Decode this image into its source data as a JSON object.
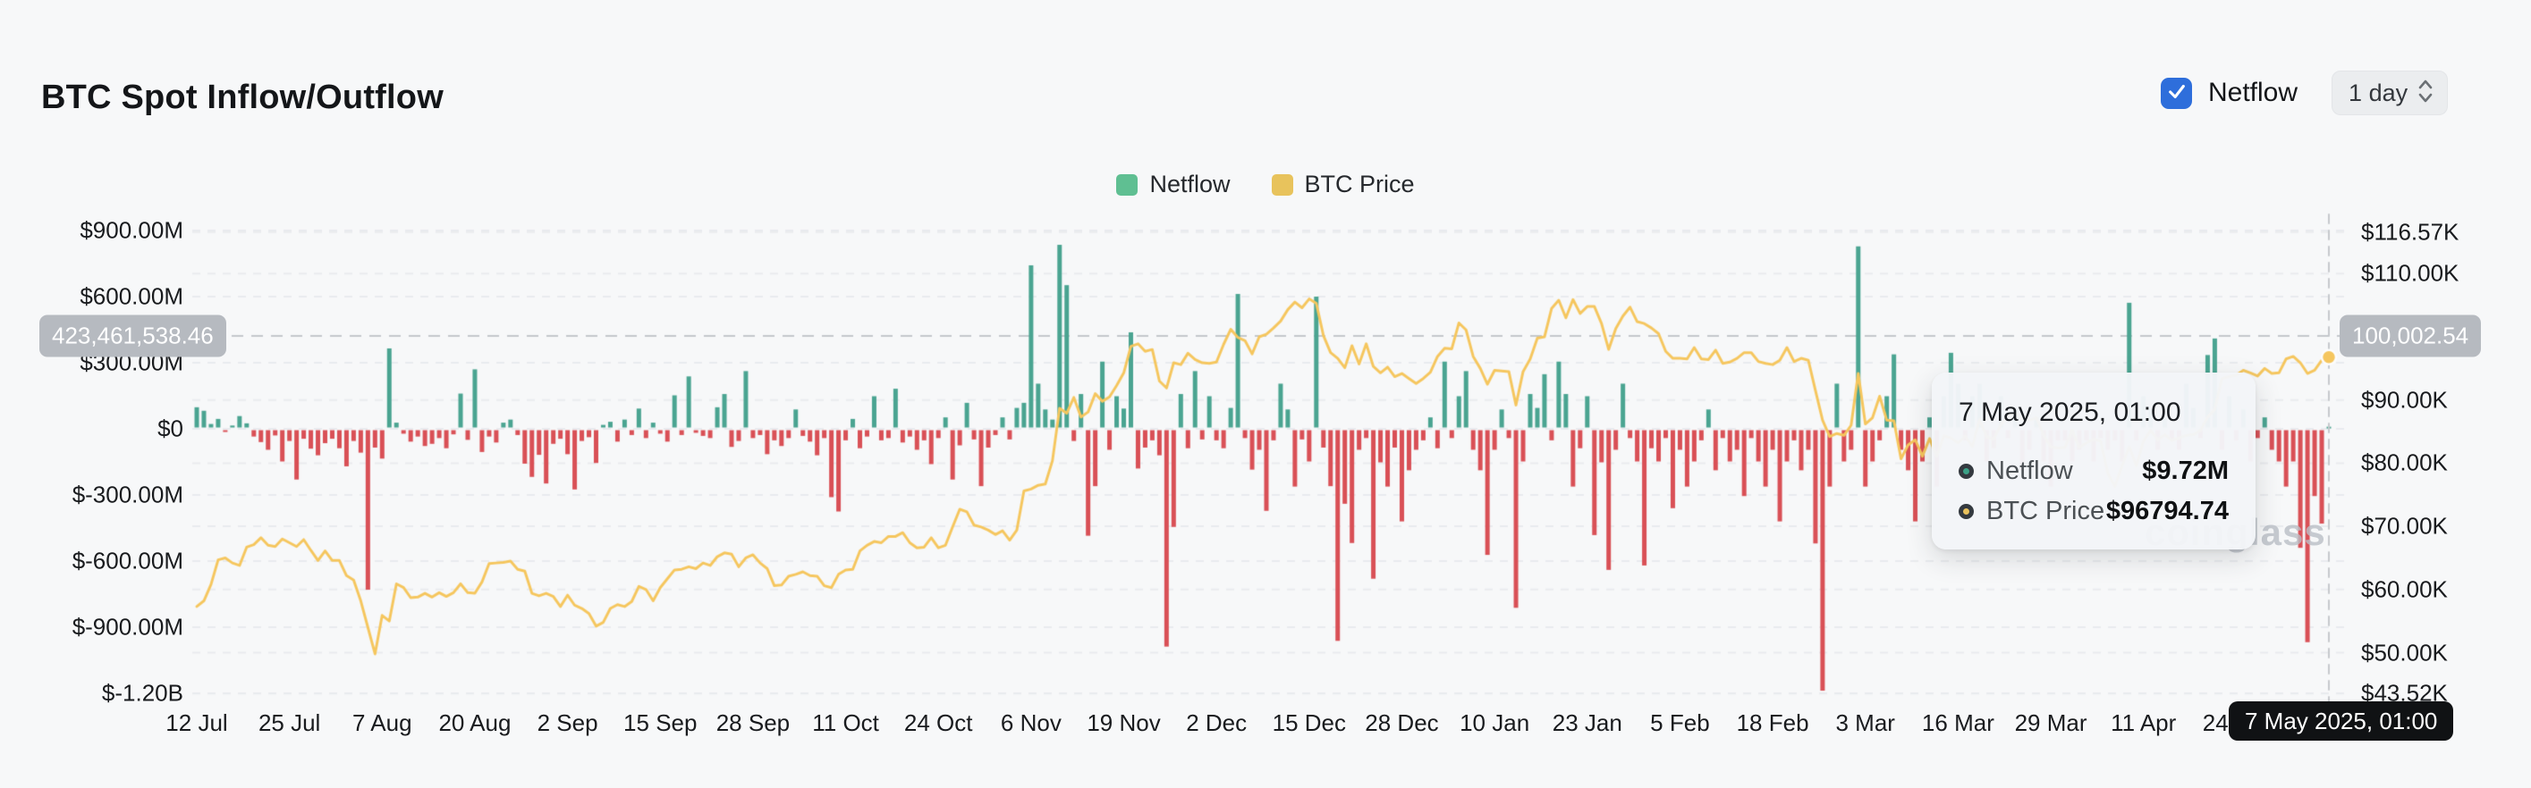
{
  "page": {
    "background": "#f7f8f9"
  },
  "header": {
    "title": "BTC Spot Inflow/Outflow",
    "netflow_checkbox": {
      "label": "Netflow",
      "checked": true,
      "color": "#2e6edb"
    },
    "interval_select": {
      "value": "1 day"
    }
  },
  "legend": {
    "items": [
      {
        "label": "Netflow",
        "color": "#5fbf92"
      },
      {
        "label": "BTC Price",
        "color": "#e8c35c"
      }
    ]
  },
  "crosshair": {
    "left_axis_badge": "423,461,538.46",
    "right_axis_badge": "100,002.54",
    "x_axis_badge": "7 May 2025, 01:00"
  },
  "tooltip": {
    "title": "7 May 2025, 01:00",
    "rows": [
      {
        "label": "Netflow",
        "value": "$9.72M",
        "marker_color": "#3ba186"
      },
      {
        "label": "BTC Price",
        "value": "$96794.74",
        "marker_color": "#e9c25d"
      }
    ]
  },
  "watermark": "coinglass",
  "chart_data": {
    "type": "bar+line",
    "n_points": 300,
    "x_tick_labels": [
      "12 Jul",
      "25 Jul",
      "7 Aug",
      "20 Aug",
      "2 Sep",
      "15 Sep",
      "28 Sep",
      "11 Oct",
      "24 Oct",
      "6 Nov",
      "19 Nov",
      "2 Dec",
      "15 Dec",
      "28 Dec",
      "10 Jan",
      "23 Jan",
      "5 Feb",
      "18 Feb",
      "3 Mar",
      "16 Mar",
      "29 Mar",
      "11 Apr",
      "24 Apr"
    ],
    "x_tick_indices": [
      0,
      13,
      26,
      39,
      52,
      65,
      78,
      91,
      104,
      117,
      130,
      143,
      156,
      169,
      182,
      195,
      208,
      221,
      234,
      247,
      260,
      273,
      286
    ],
    "left_axis": {
      "labels": [
        {
          "text": "$900.00M",
          "value_m": 900
        },
        {
          "text": "$600.00M",
          "value_m": 600
        },
        {
          "text": "$300.00M",
          "value_m": 300
        },
        {
          "text": "$0",
          "value_m": 0
        },
        {
          "text": "$-300.00M",
          "value_m": -300
        },
        {
          "text": "$-600.00M",
          "value_m": -600
        },
        {
          "text": "$-900.00M",
          "value_m": -900
        },
        {
          "text": "$-1.20B",
          "value_m": -1200
        }
      ]
    },
    "right_axis": {
      "labels": [
        {
          "text": "$116.57K",
          "value_k": 116.57
        },
        {
          "text": "$110.00K",
          "value_k": 110
        },
        {
          "text": "$90.00K",
          "value_k": 90
        },
        {
          "text": "$80.00K",
          "value_k": 80
        },
        {
          "text": "$70.00K",
          "value_k": 70
        },
        {
          "text": "$60.00K",
          "value_k": 60
        },
        {
          "text": "$50.00K",
          "value_k": 50
        },
        {
          "text": "$43.52K",
          "value_k": 43.52
        }
      ]
    },
    "series": [
      {
        "name": "Netflow",
        "type": "bar",
        "unit": "million USD",
        "color_positive": "#4aa491",
        "color_negative": "#d95056",
        "values": [
          98,
          82,
          22,
          45,
          -10,
          15,
          58,
          25,
          -35,
          -60,
          -95,
          -30,
          -148,
          -55,
          -230,
          -45,
          -90,
          -120,
          -65,
          -45,
          -88,
          -170,
          -55,
          -108,
          -730,
          -85,
          -135,
          365,
          28,
          -22,
          -58,
          -35,
          -78,
          -68,
          -42,
          -88,
          -25,
          160,
          -50,
          270,
          -105,
          -35,
          -62,
          28,
          42,
          -28,
          -158,
          -218,
          -118,
          -248,
          -68,
          -45,
          -115,
          -275,
          -55,
          -38,
          -155,
          18,
          32,
          -58,
          42,
          -28,
          92,
          -42,
          28,
          -22,
          -58,
          152,
          -28,
          238,
          -18,
          -32,
          -42,
          98,
          158,
          -82,
          -55,
          262,
          -42,
          -28,
          -115,
          -52,
          -78,
          -42,
          88,
          -32,
          -58,
          -120,
          -42,
          -310,
          -375,
          -52,
          45,
          -88,
          -35,
          148,
          -52,
          -42,
          182,
          -62,
          -35,
          -95,
          -52,
          -160,
          -42,
          52,
          -230,
          -75,
          118,
          -48,
          -260,
          -85,
          -28,
          52,
          -48,
          95,
          118,
          742,
          205,
          88,
          42,
          835,
          652,
          -55,
          158,
          -485,
          -260,
          305,
          -95,
          148,
          92,
          438,
          -180,
          -85,
          -52,
          -120,
          -988,
          -445,
          158,
          -88,
          262,
          -48,
          148,
          -52,
          -88,
          95,
          612,
          -42,
          -185,
          -95,
          -372,
          -52,
          205,
          88,
          -262,
          -48,
          -148,
          600,
          -85,
          -260,
          -962,
          -340,
          -518,
          -95,
          -42,
          -680,
          -152,
          -262,
          -85,
          -420,
          -188,
          -95,
          -52,
          52,
          -88,
          305,
          -42,
          148,
          262,
          -95,
          -188,
          -572,
          -95,
          88,
          -42,
          -812,
          -148,
          158,
          95,
          248,
          -52,
          305,
          158,
          -262,
          -88,
          148,
          -482,
          -152,
          -640,
          -95,
          205,
          -42,
          -148,
          -620,
          -88,
          -148,
          -42,
          -360,
          -95,
          -262,
          -148,
          -52,
          88,
          -188,
          -42,
          -148,
          -95,
          -305,
          -42,
          -148,
          -262,
          -95,
          -420,
          -148,
          -52,
          -188,
          -95,
          -520,
          -1188,
          -262,
          205,
          -148,
          -95,
          828,
          -262,
          -148,
          -52,
          148,
          338,
          -95,
          -188,
          -420,
          -148,
          52,
          -262,
          148,
          345,
          205,
          -52,
          148,
          205,
          -148,
          -88,
          148,
          -42,
          95,
          -188,
          -95,
          52,
          -148,
          -262,
          -52,
          -52,
          -148,
          -95,
          -52,
          -148,
          -42,
          -95,
          -52,
          -148,
          572,
          -52,
          148,
          88,
          -95,
          52,
          -52,
          -95,
          205,
          95,
          -42,
          335,
          410,
          -95,
          148,
          -52,
          88,
          -148,
          -42,
          52,
          -95,
          -148,
          -262,
          -148,
          -540,
          -968,
          -305,
          -430,
          9.72
        ]
      },
      {
        "name": "BTC Price",
        "type": "line",
        "unit": "thousand USD",
        "color": "#f5c65e",
        "values": [
          57.3,
          58.2,
          60.8,
          64.7,
          65.0,
          64.2,
          63.8,
          66.7,
          67.1,
          68.2,
          67.0,
          66.8,
          68.0,
          67.4,
          66.8,
          67.9,
          66.2,
          64.6,
          66.1,
          64.6,
          64.6,
          62.2,
          61.5,
          58.2,
          54.0,
          49.8,
          55.9,
          55.0,
          60.9,
          60.3,
          58.7,
          58.8,
          59.4,
          58.8,
          59.5,
          58.9,
          59.5,
          60.9,
          59.5,
          59.4,
          61.2,
          64.1,
          64.2,
          64.3,
          64.5,
          63.2,
          62.9,
          59.4,
          59.0,
          59.4,
          58.9,
          57.3,
          59.1,
          57.5,
          57.0,
          56.2,
          54.2,
          54.8,
          57.0,
          57.6,
          57.3,
          58.1,
          60.5,
          60.0,
          58.2,
          60.3,
          61.7,
          63.1,
          63.2,
          63.6,
          63.3,
          64.2,
          63.8,
          65.2,
          65.8,
          65.6,
          63.6,
          65.0,
          65.5,
          64.2,
          63.3,
          60.6,
          60.7,
          62.1,
          62.4,
          62.8,
          62.2,
          62.1,
          60.6,
          60.3,
          62.4,
          63.1,
          63.2,
          66.1,
          67.0,
          67.6,
          67.4,
          68.4,
          68.4,
          69.0,
          67.4,
          66.6,
          66.7,
          68.2,
          66.6,
          67.0,
          69.9,
          72.7,
          72.3,
          70.2,
          69.9,
          69.4,
          68.7,
          69.3,
          67.8,
          69.4,
          75.6,
          75.9,
          76.5,
          76.7,
          80.4,
          88.7,
          87.9,
          90.4,
          87.3,
          88.1,
          91.0,
          89.8,
          90.5,
          92.3,
          94.3,
          98.5,
          98.9,
          97.7,
          98.0,
          93.0,
          91.9,
          95.9,
          95.6,
          97.4,
          96.4,
          95.9,
          95.8,
          96.0,
          98.8,
          101.2,
          99.9,
          99.4,
          97.3,
          100.0,
          100.4,
          101.4,
          102.5,
          104.3,
          105.5,
          104.6,
          106.0,
          105.3,
          100.2,
          97.5,
          96.6,
          95.1,
          98.6,
          95.7,
          98.9,
          95.3,
          94.3,
          95.2,
          93.7,
          94.2,
          93.4,
          92.6,
          93.4,
          94.4,
          96.9,
          98.2,
          98.1,
          102.2,
          101.1,
          96.9,
          95.0,
          92.5,
          94.7,
          94.6,
          94.5,
          89.2,
          94.5,
          96.5,
          99.8,
          100.0,
          104.5,
          105.8,
          103.0,
          105.9,
          103.7,
          104.8,
          104.8,
          102.1,
          98.0,
          101.3,
          103.3,
          104.7,
          102.4,
          102.1,
          101.4,
          100.5,
          97.7,
          96.6,
          96.6,
          96.5,
          98.3,
          96.5,
          96.4,
          97.9,
          95.8,
          96.0,
          96.6,
          97.5,
          97.5,
          96.1,
          95.8,
          95.6,
          96.3,
          98.3,
          96.1,
          96.6,
          96.3,
          91.5,
          86.8,
          84.2,
          84.7,
          84.4,
          86.0,
          94.2,
          86.2,
          87.2,
          90.6,
          86.8,
          86.7,
          80.7,
          82.9,
          83.7,
          81.1,
          83.9,
          81.1,
          84.3,
          84.0,
          83.2,
          84.3,
          82.6,
          86.9,
          84.2,
          83.8,
          86.1,
          87.5,
          88.0,
          86.9,
          86.8,
          87.2,
          84.4,
          82.6,
          82.4,
          82.5,
          85.2,
          82.5,
          83.2,
          83.8,
          83.5,
          78.4,
          76.3,
          79.6,
          82.6,
          79.6,
          83.5,
          85.2,
          83.7,
          84.5,
          83.6,
          84.0,
          84.4,
          84.5,
          85.2,
          87.3,
          88.5,
          93.4,
          93.7,
          93.9,
          94.7,
          94.3,
          93.8,
          95.0,
          94.2,
          94.3,
          96.5,
          96.9,
          95.9,
          94.2,
          94.7,
          96.3,
          96.794
        ]
      }
    ],
    "highlight_point": {
      "index": 299,
      "netflow": "$9.72M",
      "btc_price": "$96794.74"
    },
    "legend_position": "top-center",
    "grid": true
  }
}
